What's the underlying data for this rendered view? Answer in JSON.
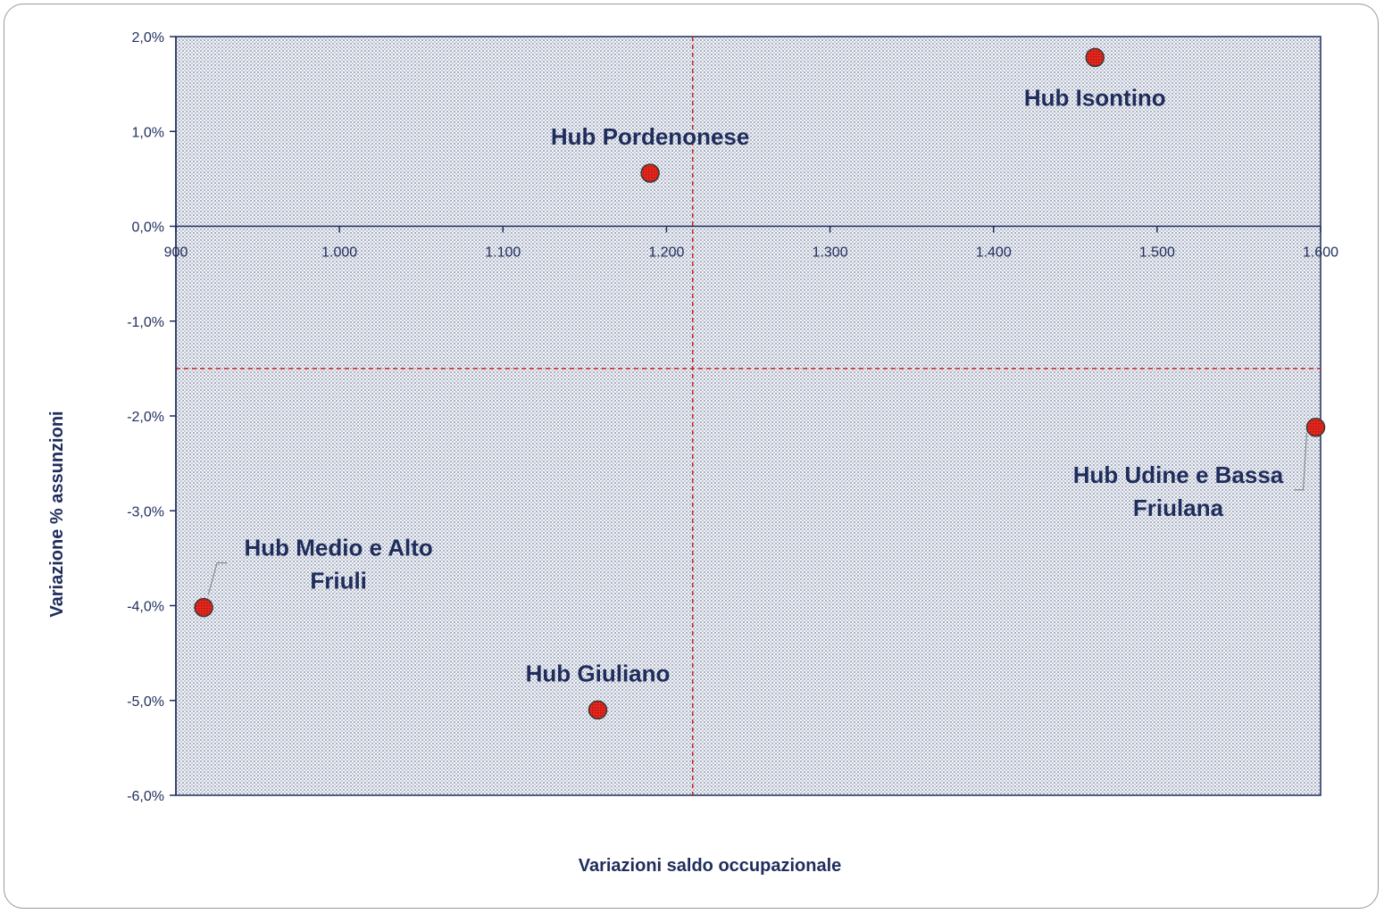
{
  "chart_data": {
    "type": "scatter",
    "xlabel": "Variazioni saldo occupazionale",
    "ylabel": "Variazione % assunzioni",
    "xlim": [
      900,
      1600
    ],
    "ylim": [
      -6.0,
      2.0
    ],
    "x_ticks": [
      900,
      1000,
      1100,
      1200,
      1300,
      1400,
      1500,
      1600
    ],
    "x_tick_labels": [
      "900",
      "1.000",
      "1.100",
      "1.200",
      "1.300",
      "1.400",
      "1.500",
      "1.600"
    ],
    "y_ticks": [
      2,
      1,
      0,
      -1,
      -2,
      -3,
      -4,
      -5,
      -6
    ],
    "y_tick_labels": [
      "2,0%",
      "1,0%",
      "0,0%",
      "-1,0%",
      "-2,0%",
      "-3,0%",
      "-4,0%",
      "-5,0%",
      "-6,0%"
    ],
    "reference_lines": {
      "x": 1216,
      "y": -1.5,
      "style": "dashed",
      "color": "#cc2222"
    },
    "points": [
      {
        "label": "Hub Isontino",
        "x": 1462,
        "y": 1.78
      },
      {
        "label": "Hub Pordenonese",
        "x": 1190,
        "y": 0.56
      },
      {
        "label": "Hub Udine e Bassa Friulana",
        "label_lines": [
          "Hub Udine e Bassa",
          "Friulana"
        ],
        "x": 1597,
        "y": -2.12
      },
      {
        "label": "Hub Medio e Alto Friuli",
        "label_lines": [
          "Hub Medio e Alto",
          "Friuli"
        ],
        "x": 917,
        "y": -4.02
      },
      {
        "label": "Hub Giuliano",
        "x": 1158,
        "y": -5.1
      }
    ],
    "grid": false,
    "legend": "none",
    "colors": {
      "text": "#1f2d5c",
      "axis": "#1f2d5c",
      "plot_background": "#d9dde6",
      "marker": "#e8281e",
      "reference_line": "#cc2222"
    }
  }
}
